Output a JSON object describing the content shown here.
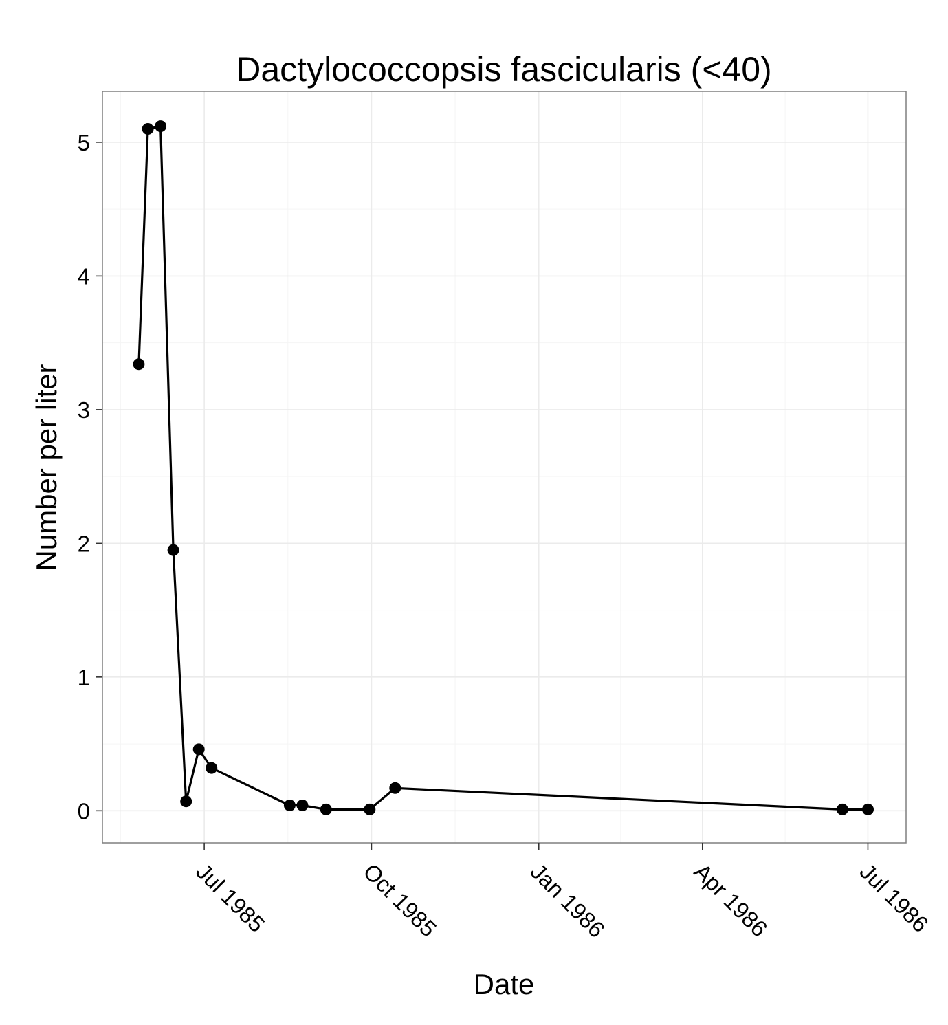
{
  "chart_data": {
    "type": "line",
    "title": "Dactylococcopsis fascicularis (<40)",
    "xlabel": "Date",
    "ylabel": "Number per liter",
    "x_tick_labels": [
      "Jul 1985",
      "Oct 1985",
      "Jan 1986",
      "Apr 1986",
      "Jul 1986"
    ],
    "x_tick_dates": [
      "1985-07-01",
      "1985-10-01",
      "1986-01-01",
      "1986-04-01",
      "1986-07-01"
    ],
    "y_tick_labels": [
      "0",
      "1",
      "2",
      "3",
      "4",
      "5"
    ],
    "y_ticks": [
      0,
      1,
      2,
      3,
      4,
      5
    ],
    "xlim": [
      "1985-05-06",
      "1986-07-22"
    ],
    "ylim": [
      -0.24,
      5.38
    ],
    "grid": true,
    "series": [
      {
        "color": "#000000",
        "points": [
          {
            "x": "1985-05-26",
            "y": 3.34
          },
          {
            "x": "1985-05-31",
            "y": 5.1
          },
          {
            "x": "1985-06-07",
            "y": 5.12
          },
          {
            "x": "1985-06-14",
            "y": 1.95
          },
          {
            "x": "1985-06-21",
            "y": 0.07
          },
          {
            "x": "1985-06-28",
            "y": 0.46
          },
          {
            "x": "1985-07-05",
            "y": 0.32
          },
          {
            "x": "1985-08-17",
            "y": 0.04
          },
          {
            "x": "1985-08-24",
            "y": 0.04
          },
          {
            "x": "1985-09-06",
            "y": 0.01
          },
          {
            "x": "1985-09-30",
            "y": 0.01
          },
          {
            "x": "1985-10-14",
            "y": 0.17
          },
          {
            "x": "1986-06-17",
            "y": 0.01
          },
          {
            "x": "1986-07-01",
            "y": 0.01
          }
        ]
      }
    ]
  }
}
